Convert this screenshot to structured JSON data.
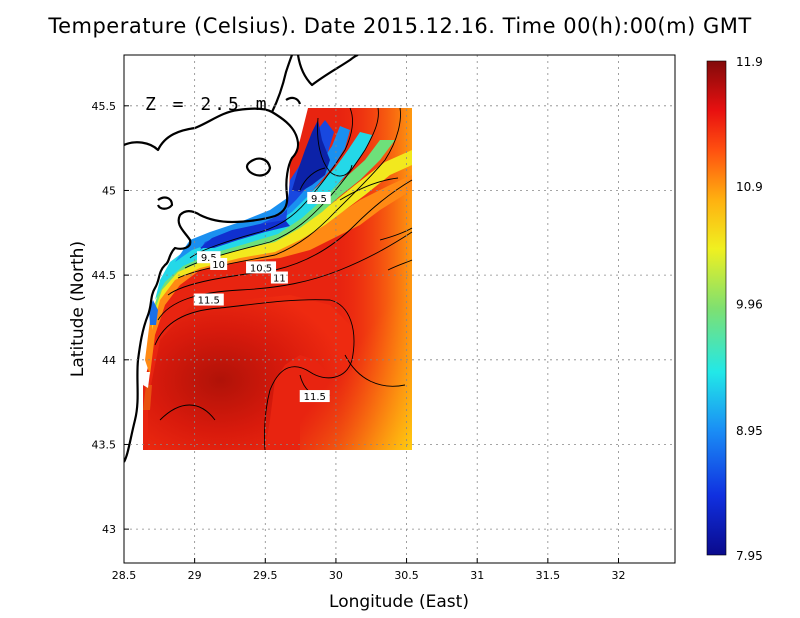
{
  "title": "Temperature (Celsius). Date 2015.12.16. Time 00(h):00(m)  GMT",
  "depth_label": "Z = 2.5 m",
  "axes": {
    "xlabel": "Longitude (East)",
    "ylabel": "Latitude (North)",
    "xlim": [
      28.5,
      32.4
    ],
    "ylim": [
      42.8,
      45.8
    ],
    "xticks": [
      "28.5",
      "29",
      "29.5",
      "30",
      "30.5",
      "31",
      "31.5",
      "32"
    ],
    "xtick_values": [
      28.5,
      29,
      29.5,
      30,
      30.5,
      31,
      31.5,
      32
    ],
    "yticks": [
      "43",
      "43.5",
      "44",
      "44.5",
      "45",
      "45.5"
    ],
    "ytick_values": [
      43,
      43.5,
      44,
      44.5,
      45,
      45.5
    ],
    "grid": true
  },
  "colorbar": {
    "min": 7.95,
    "max": 11.9,
    "labels": [
      "11.9",
      "10.9",
      "9.96",
      "8.95",
      "7.95"
    ],
    "label_values": [
      11.9,
      10.9,
      9.96,
      8.95,
      7.95
    ]
  },
  "contour_labels": [
    {
      "text": "9.5",
      "lon": 29.88,
      "lat": 44.95
    },
    {
      "text": "9.5",
      "lon": 29.1,
      "lat": 44.6
    },
    {
      "text": "10",
      "lon": 29.17,
      "lat": 44.56
    },
    {
      "text": "10.5",
      "lon": 29.47,
      "lat": 44.54
    },
    {
      "text": "11",
      "lon": 29.6,
      "lat": 44.48
    },
    {
      "text": "11.5",
      "lon": 29.1,
      "lat": 44.35
    },
    {
      "text": "11.5",
      "lon": 29.85,
      "lat": 43.78
    }
  ]
}
